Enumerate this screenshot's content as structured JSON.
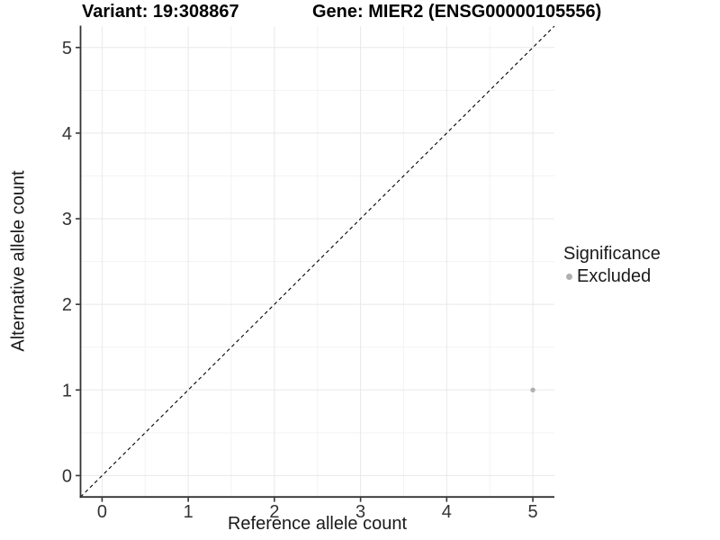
{
  "header": {
    "variant_title": "Variant: 19:308867",
    "gene_title": "Gene: MIER2 (ENSG00000105556)"
  },
  "legend": {
    "title": "Significance",
    "items": [
      {
        "label": "Excluded",
        "color": "#b0b0b0"
      }
    ]
  },
  "chart_data": {
    "type": "scatter",
    "title": "Variant: 19:308867 / Gene: MIER2 (ENSG00000105556)",
    "xlabel": "Reference allele count",
    "ylabel": "Alternative allele count",
    "xlim": [
      -0.25,
      5.25
    ],
    "ylim": [
      -0.25,
      5.25
    ],
    "xticks": [
      0,
      1,
      2,
      3,
      4,
      5
    ],
    "yticks": [
      0,
      1,
      2,
      3,
      4,
      5
    ],
    "grid": "major+minor",
    "legend_position": "right",
    "series": [
      {
        "name": "Excluded",
        "color": "#b0b0b0",
        "points": [
          {
            "x": 5,
            "y": 1
          }
        ]
      }
    ],
    "reference_line": {
      "kind": "identity",
      "equation": "y = x",
      "style": "dashed",
      "color": "#000000"
    },
    "style_colors": {
      "background": "#ffffff",
      "grid_major": "#e8e8e8",
      "grid_minor": "#f3f3f3",
      "axis_line": "#333333",
      "tick_mark": "#333333",
      "tick_label": "#333333",
      "point": "#b0b0b0"
    }
  }
}
